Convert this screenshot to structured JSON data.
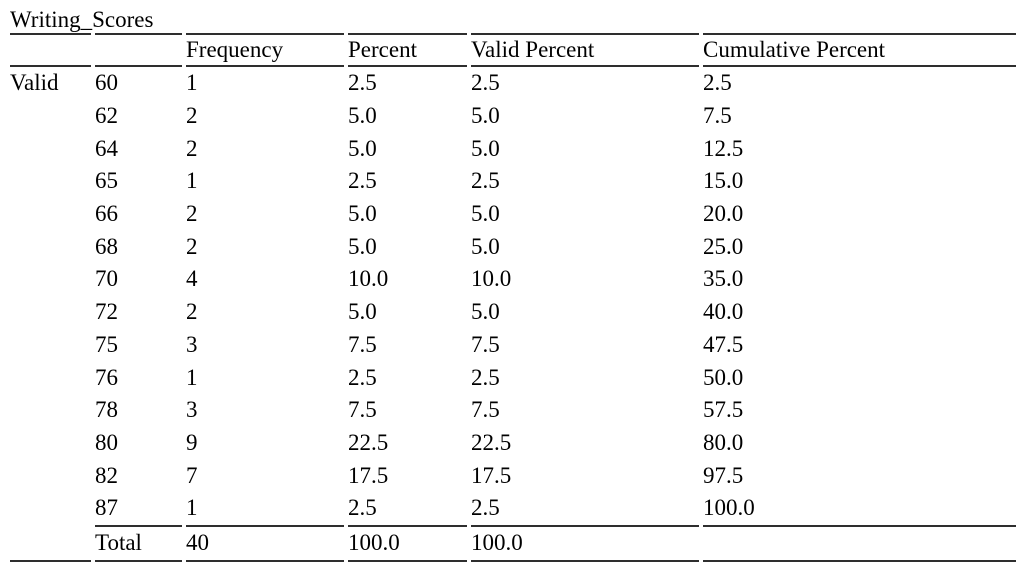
{
  "title": "Writing_Scores",
  "table": {
    "row_group_label": "Valid",
    "columns": [
      "",
      "",
      "Frequency",
      "Percent",
      "Valid Percent",
      "Cumulative Percent"
    ],
    "rows": [
      {
        "value": "60",
        "frequency": "1",
        "percent": "2.5",
        "valid_percent": "2.5",
        "cumulative_percent": "2.5"
      },
      {
        "value": "62",
        "frequency": "2",
        "percent": "5.0",
        "valid_percent": "5.0",
        "cumulative_percent": "7.5"
      },
      {
        "value": "64",
        "frequency": "2",
        "percent": "5.0",
        "valid_percent": "5.0",
        "cumulative_percent": "12.5"
      },
      {
        "value": "65",
        "frequency": "1",
        "percent": "2.5",
        "valid_percent": "2.5",
        "cumulative_percent": "15.0"
      },
      {
        "value": "66",
        "frequency": "2",
        "percent": "5.0",
        "valid_percent": "5.0",
        "cumulative_percent": "20.0"
      },
      {
        "value": "68",
        "frequency": "2",
        "percent": "5.0",
        "valid_percent": "5.0",
        "cumulative_percent": "25.0"
      },
      {
        "value": "70",
        "frequency": "4",
        "percent": "10.0",
        "valid_percent": "10.0",
        "cumulative_percent": "35.0"
      },
      {
        "value": "72",
        "frequency": "2",
        "percent": "5.0",
        "valid_percent": "5.0",
        "cumulative_percent": "40.0"
      },
      {
        "value": "75",
        "frequency": "3",
        "percent": "7.5",
        "valid_percent": "7.5",
        "cumulative_percent": "47.5"
      },
      {
        "value": "76",
        "frequency": "1",
        "percent": "2.5",
        "valid_percent": "2.5",
        "cumulative_percent": "50.0"
      },
      {
        "value": "78",
        "frequency": "3",
        "percent": "7.5",
        "valid_percent": "7.5",
        "cumulative_percent": "57.5"
      },
      {
        "value": "80",
        "frequency": "9",
        "percent": "22.5",
        "valid_percent": "22.5",
        "cumulative_percent": "80.0"
      },
      {
        "value": "82",
        "frequency": "7",
        "percent": "17.5",
        "valid_percent": "17.5",
        "cumulative_percent": "97.5"
      },
      {
        "value": "87",
        "frequency": "1",
        "percent": "2.5",
        "valid_percent": "2.5",
        "cumulative_percent": "100.0"
      }
    ],
    "total": {
      "label": "Total",
      "frequency": "40",
      "percent": "100.0",
      "valid_percent": "100.0",
      "cumulative_percent": ""
    }
  },
  "colors": {
    "text": "#000000",
    "rule": "#2e2e2e",
    "background": "#ffffff"
  }
}
